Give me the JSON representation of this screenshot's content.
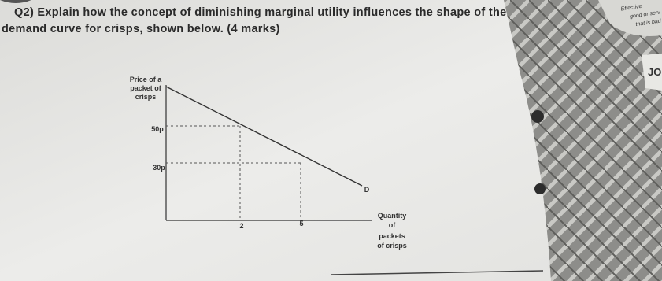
{
  "question": {
    "line_1": "Q2) Explain how the concept of diminishing marginal utility influences the shape of the",
    "line_2": "demand curve for crisps, shown below. (4 marks)"
  },
  "diagram": {
    "y_axis_label": [
      "Price of a",
      "packet of",
      "crisps"
    ],
    "price_high": "50p",
    "price_low": "30p",
    "quantity_low": "2",
    "quantity_high": "5",
    "curve_label": "D",
    "x_axis_label": [
      "Quantity",
      "of",
      "packets",
      "of crisps"
    ]
  },
  "side_note": {
    "lines": [
      "Effective",
      "good or serv",
      "that is bad"
    ],
    "tag": "JO"
  }
}
